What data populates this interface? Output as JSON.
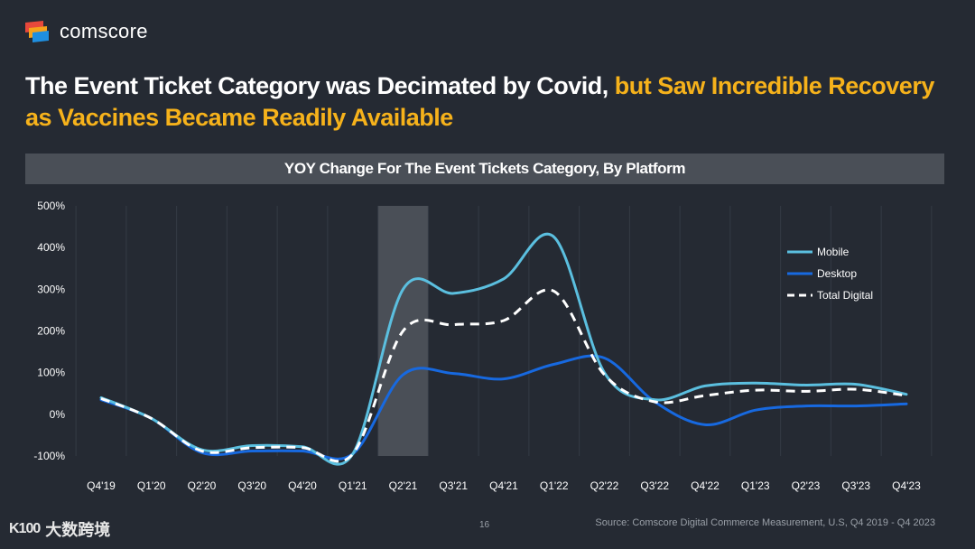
{
  "brand": {
    "name": "comscore",
    "colors": {
      "red": "#e8483b",
      "orange": "#f6a21b",
      "blue": "#1f8fe0"
    }
  },
  "title": {
    "part1": "The Event Ticket Category was Decimated by Covid,",
    "part2": " but Saw Incredible Recovery as Vaccines Became Readily Available"
  },
  "colors": {
    "background": "#252a33",
    "highlight": "#f6b21b",
    "mobile": "#5bbfdf",
    "desktop": "#1769e0",
    "total": "#ffffff",
    "shade": "#4a4f57"
  },
  "chart_data": {
    "type": "line",
    "title": "YOY Change For The Event Tickets Category, By Platform",
    "categories": [
      "Q4'19",
      "Q1'20",
      "Q2'20",
      "Q3'20",
      "Q4'20",
      "Q1'21",
      "Q2'21",
      "Q3'21",
      "Q4'21",
      "Q1'22",
      "Q2'22",
      "Q3'22",
      "Q4'22",
      "Q1'23",
      "Q2'23",
      "Q3'23",
      "Q4'23"
    ],
    "y_ticks": [
      "500%",
      "400%",
      "300%",
      "200%",
      "100%",
      "0%",
      "-100%"
    ],
    "ylim": [
      -100,
      500
    ],
    "grid": "vertical",
    "highlight_region": {
      "category": "Q2'21"
    },
    "legend_position": "right",
    "series": [
      {
        "name": "Mobile",
        "color": "#5bbfdf",
        "style": "solid",
        "values": [
          40,
          -10,
          -85,
          -75,
          -78,
          -95,
          300,
          290,
          325,
          425,
          100,
          35,
          68,
          75,
          70,
          72,
          48
        ]
      },
      {
        "name": "Desktop",
        "color": "#1769e0",
        "style": "solid",
        "values": [
          35,
          -10,
          -92,
          -88,
          -88,
          -95,
          95,
          98,
          85,
          120,
          135,
          30,
          -25,
          10,
          20,
          20,
          25
        ]
      },
      {
        "name": "Total Digital",
        "color": "#ffffff",
        "style": "dashed",
        "values": [
          38,
          -10,
          -88,
          -80,
          -80,
          -95,
          200,
          215,
          225,
          295,
          95,
          30,
          45,
          58,
          55,
          60,
          45
        ]
      }
    ]
  },
  "footer": {
    "page": "16",
    "source": "Source: Comscore Digital Commerce Measurement, U.S, Q4 2019 - Q4 2023",
    "watermark_mark": "K100",
    "watermark_text": "大数跨境"
  }
}
